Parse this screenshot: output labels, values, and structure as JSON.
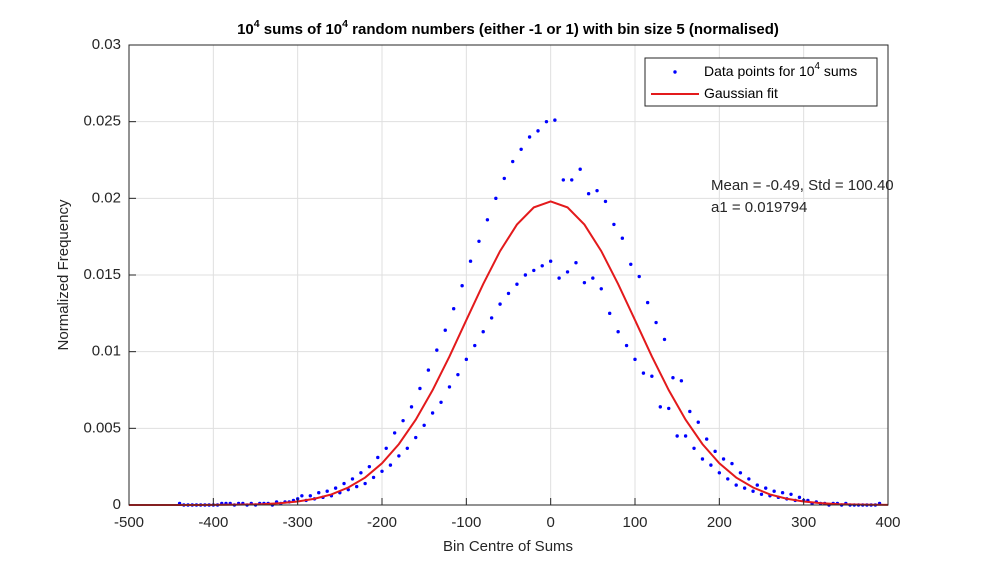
{
  "chart_data": {
    "type": "scatter",
    "title": [
      {
        "text": "10"
      },
      {
        "text": "4",
        "sup": true
      },
      {
        "text": " sums of "
      },
      {
        "text": "10"
      },
      {
        "text": "4",
        "sup": true
      },
      {
        "text": " random numbers (either -1 or 1) with bin size 5 (normalised)"
      }
    ],
    "x_label": "Bin Centre of Sums",
    "y_label": "Normalized Frequency",
    "annotations": [
      "Mean = -0.49, Std = 100.40",
      "a1 = 0.019794"
    ],
    "xlim": [
      -500,
      400
    ],
    "ylim": [
      0,
      0.03
    ],
    "xticks": [
      -500,
      -400,
      -300,
      -200,
      -100,
      0,
      100,
      200,
      300,
      400
    ],
    "yticks": [
      0,
      0.005,
      0.01,
      0.015,
      0.02,
      0.025,
      0.03
    ],
    "grid": true,
    "legend": "top-right",
    "series": [
      {
        "name": [
          {
            "text": "Data points for 10"
          },
          {
            "text": "4",
            "sup": true
          },
          {
            "text": " sums"
          }
        ],
        "type": "scatter",
        "color": "#0000ff",
        "x": [
          -440,
          -435,
          -430,
          -425,
          -420,
          -415,
          -410,
          -405,
          -400,
          -395,
          -390,
          -385,
          -380,
          -375,
          -370,
          -365,
          -360,
          -355,
          -350,
          -345,
          -340,
          -335,
          -330,
          -325,
          -320,
          -315,
          -310,
          -305,
          -300,
          -295,
          -290,
          -285,
          -280,
          -275,
          -270,
          -265,
          -260,
          -255,
          -250,
          -245,
          -240,
          -235,
          -230,
          -225,
          -220,
          -215,
          -210,
          -205,
          -200,
          -195,
          -190,
          -185,
          -180,
          -175,
          -170,
          -165,
          -160,
          -155,
          -150,
          -145,
          -140,
          -135,
          -130,
          -125,
          -120,
          -115,
          -110,
          -105,
          -100,
          -95,
          -90,
          -85,
          -80,
          -75,
          -70,
          -65,
          -60,
          -55,
          -50,
          -45,
          -40,
          -35,
          -30,
          -25,
          -20,
          -15,
          -10,
          -5,
          0,
          5,
          10,
          15,
          20,
          25,
          30,
          35,
          40,
          45,
          50,
          55,
          60,
          65,
          70,
          75,
          80,
          85,
          90,
          95,
          100,
          105,
          110,
          115,
          120,
          125,
          130,
          135,
          140,
          145,
          150,
          155,
          160,
          165,
          170,
          175,
          180,
          185,
          190,
          195,
          200,
          205,
          210,
          215,
          220,
          225,
          230,
          235,
          240,
          245,
          250,
          255,
          260,
          265,
          270,
          275,
          280,
          285,
          290,
          295,
          300,
          305,
          310,
          315,
          320,
          325,
          330,
          335,
          340,
          345,
          350,
          355,
          360,
          365,
          370,
          375,
          380,
          385,
          390
        ],
        "values": [
          0.0001,
          0,
          0,
          0,
          0,
          0,
          0,
          0,
          0,
          0,
          0.0001,
          0.0001,
          0.0001,
          0,
          0.0001,
          0.0001,
          0,
          0.0001,
          0,
          0.0001,
          0.0001,
          0.0001,
          0,
          0.0002,
          0.0001,
          0.0002,
          0.0002,
          0.0003,
          0.0004,
          0.0006,
          0.0003,
          0.0006,
          0.0004,
          0.0008,
          0.0005,
          0.0009,
          0.0006,
          0.0011,
          0.0008,
          0.0014,
          0.001,
          0.0017,
          0.0012,
          0.0021,
          0.0014,
          0.0025,
          0.0018,
          0.0031,
          0.0022,
          0.0037,
          0.0026,
          0.0047,
          0.0032,
          0.0055,
          0.0037,
          0.0064,
          0.0044,
          0.0076,
          0.0052,
          0.0088,
          0.006,
          0.0101,
          0.0067,
          0.0114,
          0.0077,
          0.0128,
          0.0085,
          0.0143,
          0.0095,
          0.0159,
          0.0104,
          0.0172,
          0.0113,
          0.0186,
          0.0122,
          0.02,
          0.0131,
          0.0213,
          0.0138,
          0.0224,
          0.0144,
          0.0232,
          0.015,
          0.024,
          0.0153,
          0.0244,
          0.0156,
          0.025,
          0.0159,
          0.0251,
          0.0148,
          0.0212,
          0.0152,
          0.0212,
          0.0158,
          0.0219,
          0.0145,
          0.0203,
          0.0148,
          0.0205,
          0.0141,
          0.0198,
          0.0125,
          0.0183,
          0.0113,
          0.0174,
          0.0104,
          0.0157,
          0.0095,
          0.0149,
          0.0086,
          0.0132,
          0.0084,
          0.0119,
          0.0064,
          0.0108,
          0.0063,
          0.0083,
          0.0045,
          0.0081,
          0.0045,
          0.0061,
          0.0037,
          0.0054,
          0.003,
          0.0043,
          0.0026,
          0.0035,
          0.0021,
          0.003,
          0.0017,
          0.0027,
          0.0013,
          0.0021,
          0.0011,
          0.0017,
          0.0009,
          0.0013,
          0.0007,
          0.0011,
          0.0006,
          0.0009,
          0.0005,
          0.0008,
          0.0004,
          0.0007,
          0.0003,
          0.0005,
          0.0003,
          0.0003,
          0.0001,
          0.0002,
          0.0001,
          0.0001,
          0,
          0.0001,
          0.0001,
          0,
          0.0001,
          0,
          0,
          0,
          0,
          0,
          0,
          0,
          0.0001
        ]
      },
      {
        "name": [
          {
            "text": "Gaussian fit"
          }
        ],
        "type": "line",
        "color": "#e31a1c",
        "x": [
          -500,
          -480,
          -460,
          -440,
          -420,
          -400,
          -380,
          -360,
          -340,
          -320,
          -300,
          -280,
          -260,
          -240,
          -220,
          -200,
          -180,
          -160,
          -140,
          -120,
          -100,
          -80,
          -60,
          -40,
          -20,
          0,
          20,
          40,
          60,
          80,
          100,
          120,
          140,
          160,
          180,
          200,
          220,
          240,
          260,
          280,
          300,
          320,
          340,
          360,
          380,
          400
        ],
        "values": [
          0,
          0,
          0,
          0,
          0,
          1e-05,
          2e-05,
          3e-05,
          6e-05,
          0.00012,
          0.00023,
          0.00041,
          0.00069,
          0.00114,
          0.00179,
          0.00272,
          0.00397,
          0.00556,
          0.00749,
          0.00969,
          0.01206,
          0.01441,
          0.01656,
          0.01829,
          0.01941,
          0.0198,
          0.01941,
          0.01829,
          0.01656,
          0.01441,
          0.01206,
          0.00969,
          0.00749,
          0.00556,
          0.00397,
          0.00272,
          0.00179,
          0.00114,
          0.00069,
          0.00041,
          0.00023,
          0.00012,
          6e-05,
          3e-05,
          2e-05,
          1e-05
        ]
      }
    ]
  }
}
